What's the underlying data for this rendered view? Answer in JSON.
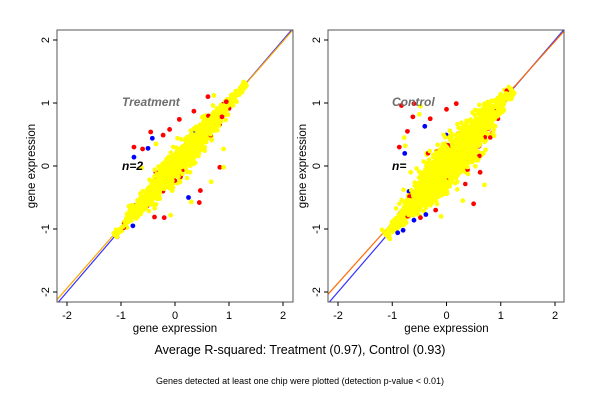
{
  "chart_data": [
    {
      "type": "scatter",
      "title": "Treatment",
      "annotation": "n=2",
      "xlabel": "gene expression",
      "ylabel": "gene expression",
      "xlim": [
        -2.2,
        2.2
      ],
      "ylim": [
        -2.2,
        2.2
      ],
      "xticks": [
        "-2",
        "-1",
        "0",
        "1",
        "2"
      ],
      "yticks": [
        "-2",
        "-1",
        "0",
        "1",
        "2"
      ],
      "r_squared": 0.97,
      "colors": {
        "primary": "#ffff00",
        "secondary": "#ff0000",
        "tertiary": "#0000ff",
        "fit_line": "#ffa500",
        "identity_line": "#0000ff"
      },
      "cloud": {
        "x_range": [
          -1.1,
          1.3
        ],
        "center": [
          0.1,
          0.1
        ],
        "spread_along": 0.55,
        "spread_across": 0.13
      },
      "reference_lines": [
        {
          "name": "identity",
          "slope": 1.0,
          "intercept": 0.0,
          "color": "#3333ff"
        },
        {
          "name": "fit",
          "slope": 0.98,
          "intercept": 0.02,
          "color": "#ffa500"
        }
      ],
      "outliers": [
        {
          "x": -0.76,
          "y": 0.3,
          "c": "red"
        },
        {
          "x": -0.6,
          "y": 0.27,
          "c": "red"
        },
        {
          "x": -0.76,
          "y": 0.14,
          "c": "blue"
        },
        {
          "x": -0.42,
          "y": 0.44,
          "c": "blue"
        },
        {
          "x": -0.45,
          "y": 0.54,
          "c": "red"
        },
        {
          "x": -0.5,
          "y": 0.28,
          "c": "blue"
        },
        {
          "x": -0.35,
          "y": 0.35,
          "c": "yellow"
        },
        {
          "x": -0.22,
          "y": 0.49,
          "c": "red"
        },
        {
          "x": -0.1,
          "y": 0.58,
          "c": "red"
        },
        {
          "x": 0.08,
          "y": 0.74,
          "c": "red"
        },
        {
          "x": 0.35,
          "y": 0.87,
          "c": "red"
        },
        {
          "x": 0.61,
          "y": 1.1,
          "c": "red"
        },
        {
          "x": 0.72,
          "y": 1.12,
          "c": "yellow"
        },
        {
          "x": 0.95,
          "y": 1.02,
          "c": "red"
        },
        {
          "x": 0.87,
          "y": 0.78,
          "c": "red"
        },
        {
          "x": 0.9,
          "y": 0.27,
          "c": "yellow"
        },
        {
          "x": 0.83,
          "y": -0.02,
          "c": "red"
        },
        {
          "x": 0.9,
          "y": -0.02,
          "c": "yellow"
        },
        {
          "x": 0.67,
          "y": -0.25,
          "c": "yellow"
        },
        {
          "x": 0.47,
          "y": -0.39,
          "c": "red"
        },
        {
          "x": 0.3,
          "y": -0.57,
          "c": "yellow"
        },
        {
          "x": 0.25,
          "y": -0.5,
          "c": "blue"
        },
        {
          "x": 0.45,
          "y": -0.58,
          "c": "red"
        },
        {
          "x": -0.08,
          "y": -0.78,
          "c": "yellow"
        },
        {
          "x": -0.2,
          "y": -0.82,
          "c": "red"
        },
        {
          "x": -0.38,
          "y": -0.81,
          "c": "red"
        },
        {
          "x": -0.78,
          "y": -0.95,
          "c": "blue"
        },
        {
          "x": -0.62,
          "y": -0.03,
          "c": "yellow"
        }
      ]
    },
    {
      "type": "scatter",
      "title": "Control",
      "annotation": "n=",
      "xlabel": "gene expression",
      "ylabel": "gene expression",
      "xlim": [
        -2.2,
        2.2
      ],
      "ylim": [
        -2.2,
        2.2
      ],
      "xticks": [
        "-2",
        "-1",
        "0",
        "1",
        "2"
      ],
      "yticks": [
        "-2",
        "-1",
        "0",
        "1",
        "2"
      ],
      "r_squared": 0.93,
      "colors": {
        "primary": "#ffff00",
        "secondary": "#ff0000",
        "tertiary": "#0000ff",
        "fit_line": "#ffa500",
        "identity_line": "#0000ff"
      },
      "cloud": {
        "x_range": [
          -1.1,
          1.2
        ],
        "center": [
          0.1,
          0.1
        ],
        "spread_along": 0.55,
        "spread_across": 0.22
      },
      "reference_lines": [
        {
          "name": "identity",
          "slope": 1.0,
          "intercept": 0.0,
          "color": "#3333ff"
        },
        {
          "name": "fit",
          "slope": 0.96,
          "intercept": 0.06,
          "color": "#ff6a00"
        }
      ],
      "outliers": [
        {
          "x": -0.6,
          "y": 0.99,
          "c": "red"
        },
        {
          "x": -0.48,
          "y": 0.95,
          "c": "yellow"
        },
        {
          "x": -0.83,
          "y": 0.96,
          "c": "red"
        },
        {
          "x": -0.62,
          "y": 0.78,
          "c": "red"
        },
        {
          "x": -0.5,
          "y": 0.82,
          "c": "yellow"
        },
        {
          "x": -0.72,
          "y": 0.55,
          "c": "red"
        },
        {
          "x": -0.78,
          "y": 0.45,
          "c": "yellow"
        },
        {
          "x": -0.87,
          "y": 0.3,
          "c": "red"
        },
        {
          "x": -0.76,
          "y": 0.32,
          "c": "yellow"
        },
        {
          "x": -0.77,
          "y": 0.2,
          "c": "blue"
        },
        {
          "x": -0.4,
          "y": 0.63,
          "c": "blue"
        },
        {
          "x": -0.3,
          "y": 0.75,
          "c": "red"
        },
        {
          "x": 0.0,
          "y": 0.9,
          "c": "red"
        },
        {
          "x": 0.18,
          "y": 0.99,
          "c": "red"
        },
        {
          "x": 0.62,
          "y": -0.1,
          "c": "red"
        },
        {
          "x": 0.7,
          "y": -0.3,
          "c": "yellow"
        },
        {
          "x": 0.5,
          "y": -0.6,
          "c": "red"
        },
        {
          "x": 0.3,
          "y": -0.55,
          "c": "yellow"
        },
        {
          "x": -0.38,
          "y": -0.77,
          "c": "blue"
        },
        {
          "x": -0.48,
          "y": -0.82,
          "c": "red"
        },
        {
          "x": -0.6,
          "y": -0.86,
          "c": "blue"
        },
        {
          "x": -0.2,
          "y": -0.7,
          "c": "red"
        },
        {
          "x": -0.8,
          "y": -1.02,
          "c": "blue"
        },
        {
          "x": -0.9,
          "y": -1.06,
          "c": "blue"
        },
        {
          "x": -0.66,
          "y": -0.1,
          "c": "yellow"
        },
        {
          "x": -0.1,
          "y": -0.8,
          "c": "yellow"
        }
      ]
    }
  ],
  "footer": {
    "main": "Average R-squared: Treatment (0.97), Control (0.93)",
    "note": "Genes detected at least one chip were plotted (detection p-value < 0.01)"
  }
}
